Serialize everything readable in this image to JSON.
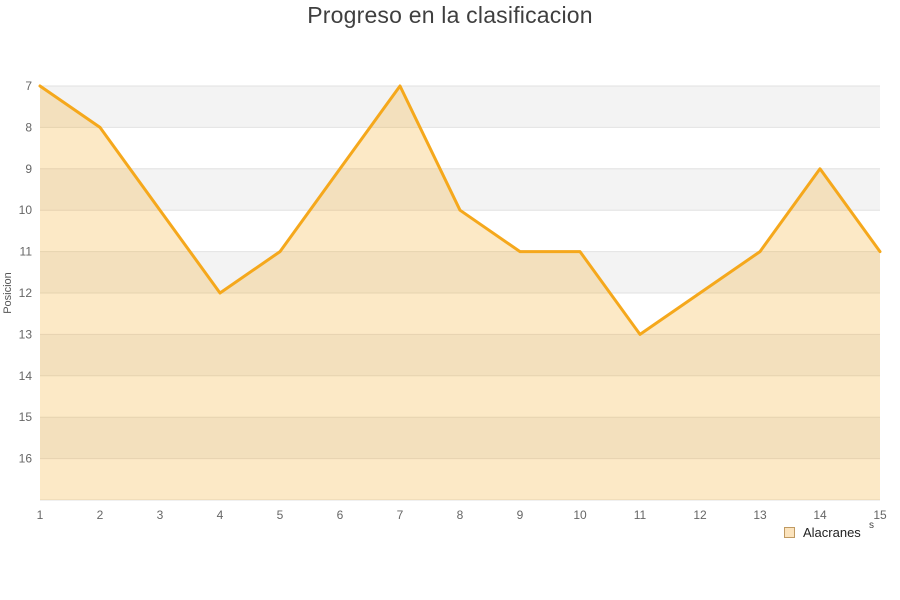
{
  "chart_data": {
    "type": "area",
    "title": "Progreso en la clasificacion",
    "xlabel": "",
    "ylabel": "Posicion",
    "x": [
      "1",
      "2",
      "3",
      "4",
      "5",
      "6",
      "7",
      "8",
      "9",
      "10",
      "11",
      "12",
      "13",
      "14",
      "15"
    ],
    "series": [
      {
        "name": "Alacranes",
        "values": [
          7,
          8,
          10,
          12,
          11,
          9,
          7,
          10,
          11,
          11,
          13,
          12,
          11,
          9,
          11
        ]
      }
    ],
    "ylim": [
      7,
      17
    ],
    "yticks": [
      7,
      8,
      9,
      10,
      11,
      12,
      13,
      14,
      15,
      16
    ],
    "y_axis_reversed": true,
    "grid": true,
    "legend_position": "bottom-right",
    "colors": {
      "line": "#F5A81C",
      "fill": "rgba(245,168,28,0.25)",
      "band": "#F3F3F3",
      "band_alt": "#FFFFFF",
      "gridline": "#E2E2E2",
      "legend_box_fill": "#FBE3BD",
      "legend_box_border": "#C09A62",
      "title_color": "#3F3F3F"
    }
  },
  "stray_text": "s"
}
